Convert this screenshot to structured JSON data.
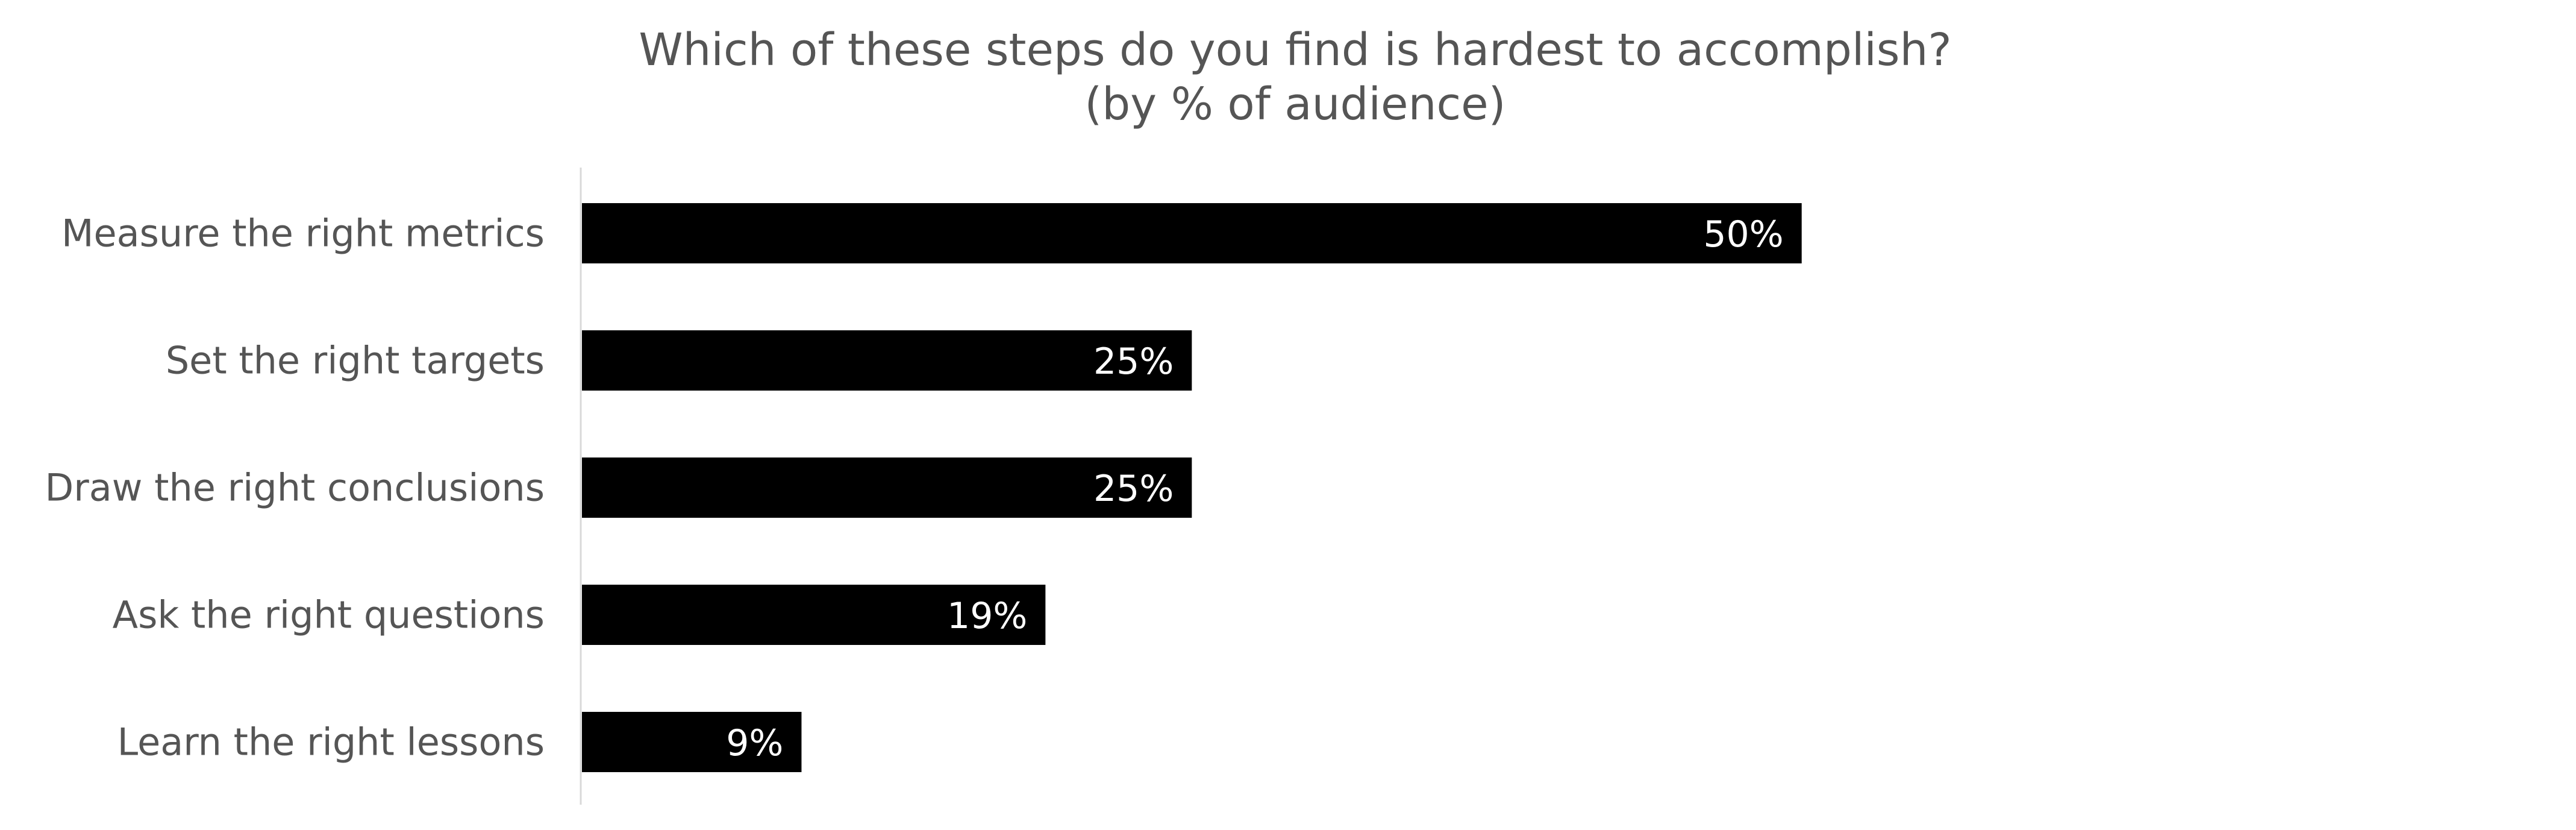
{
  "chart_data": {
    "type": "bar",
    "orientation": "horizontal",
    "title": "Which of these steps do you find is hardest to accomplish?",
    "subtitle": "(by % of audience)",
    "categories": [
      "Measure the right metrics",
      "Set the right targets",
      "Draw the right conclusions",
      "Ask the right questions",
      "Learn the right lessons"
    ],
    "values": [
      50,
      25,
      25,
      19,
      9
    ],
    "data_labels": [
      "50%",
      "25%",
      "25%",
      "19%",
      "9%"
    ],
    "value_unit": "%",
    "xlim": [
      0,
      77
    ],
    "grid": false,
    "legend": "none",
    "colors": {
      "bar": "#000000",
      "axis_line": "#d9d9d9",
      "text": "#555555",
      "data_label": "#ffffff"
    }
  }
}
